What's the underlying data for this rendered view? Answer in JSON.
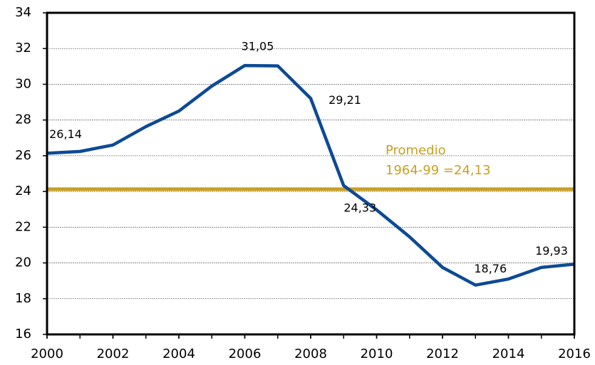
{
  "chart_data": {
    "type": "line",
    "x": [
      2000,
      2001,
      2002,
      2003,
      2004,
      2005,
      2006,
      2007,
      2008,
      2009,
      2010,
      2011,
      2012,
      2013,
      2014,
      2015,
      2016
    ],
    "series": [
      {
        "color": "#0d4a94",
        "values": [
          26.14,
          26.24,
          26.6,
          27.63,
          28.5,
          29.9,
          31.05,
          31.03,
          29.21,
          24.33,
          22.97,
          21.46,
          19.75,
          18.76,
          19.1,
          19.75,
          19.93
        ],
        "value_labels": [
          "26,14",
          null,
          null,
          null,
          null,
          null,
          "31,05",
          null,
          "29,21",
          "24,33",
          null,
          null,
          null,
          "18,76",
          null,
          null,
          "19,93"
        ]
      }
    ],
    "reference": {
      "value": 24.13,
      "color": "#c8a020",
      "label_lines": [
        "Promedio",
        "1964-99 =24,13"
      ]
    },
    "xlim": [
      2000,
      2016
    ],
    "xticks": [
      2000,
      2002,
      2004,
      2006,
      2008,
      2010,
      2012,
      2014,
      2016
    ],
    "ylim": [
      16,
      34
    ],
    "yticks": [
      16,
      18,
      20,
      22,
      24,
      26,
      28,
      30,
      32,
      34
    ],
    "grid": true
  }
}
